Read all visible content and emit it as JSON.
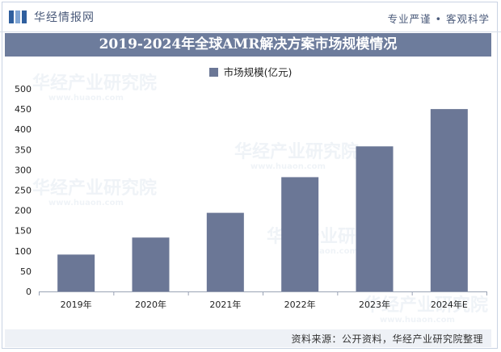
{
  "header": {
    "brand": "华经情报网",
    "tagline": "专业严谨 • 客观科学"
  },
  "watermark": {
    "text": "华经产业研究院",
    "url": "www.huaon.com"
  },
  "colors": {
    "bar": "#6b7796",
    "title_bg": "#6d7c9c",
    "brand_blue": "#2f5f9e"
  },
  "chart_data": {
    "type": "bar",
    "title": "2019-2024年全球AMR解决方案市场规模情况",
    "categories": [
      "2019年",
      "2020年",
      "2021年",
      "2022年",
      "2023年",
      "2024年E"
    ],
    "series": [
      {
        "name": "市场规模(亿元)",
        "values": [
          91,
          133,
          194,
          282,
          358,
          450
        ]
      }
    ],
    "yticks": [
      0,
      50,
      100,
      150,
      200,
      250,
      300,
      350,
      400,
      450,
      500
    ],
    "ylim": [
      0,
      500
    ],
    "grid": false,
    "legend_position": "top-center"
  },
  "footer": {
    "source": "资料来源：公开资料，华经产业研究院整理"
  }
}
